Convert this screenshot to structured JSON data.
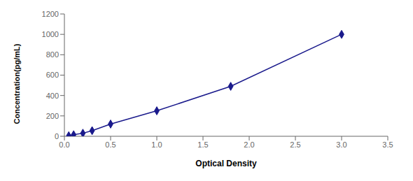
{
  "chart_data": {
    "type": "line",
    "xlabel": "Optical Density",
    "ylabel": "Concentration(pg/mL)",
    "x": [
      0.047,
      0.1,
      0.2,
      0.3,
      0.5,
      1.0,
      1.8,
      3.0
    ],
    "values": [
      5,
      15,
      30,
      55,
      120,
      250,
      490,
      1000
    ],
    "color": "#1a1a8c",
    "marker": "diamond",
    "xlim": [
      0,
      3.5
    ],
    "ylim": [
      0,
      1200
    ],
    "xticks": [
      {
        "value": 0,
        "label": "0.0"
      },
      0.5,
      {
        "value": 1,
        "label": "1.0"
      },
      1.5,
      {
        "value": 2,
        "label": "2.0"
      },
      2.5,
      {
        "value": 3,
        "label": "3.0"
      },
      3.5
    ],
    "yticks": [
      0,
      200,
      400,
      600,
      800,
      1000,
      1200
    ],
    "grid": false
  }
}
